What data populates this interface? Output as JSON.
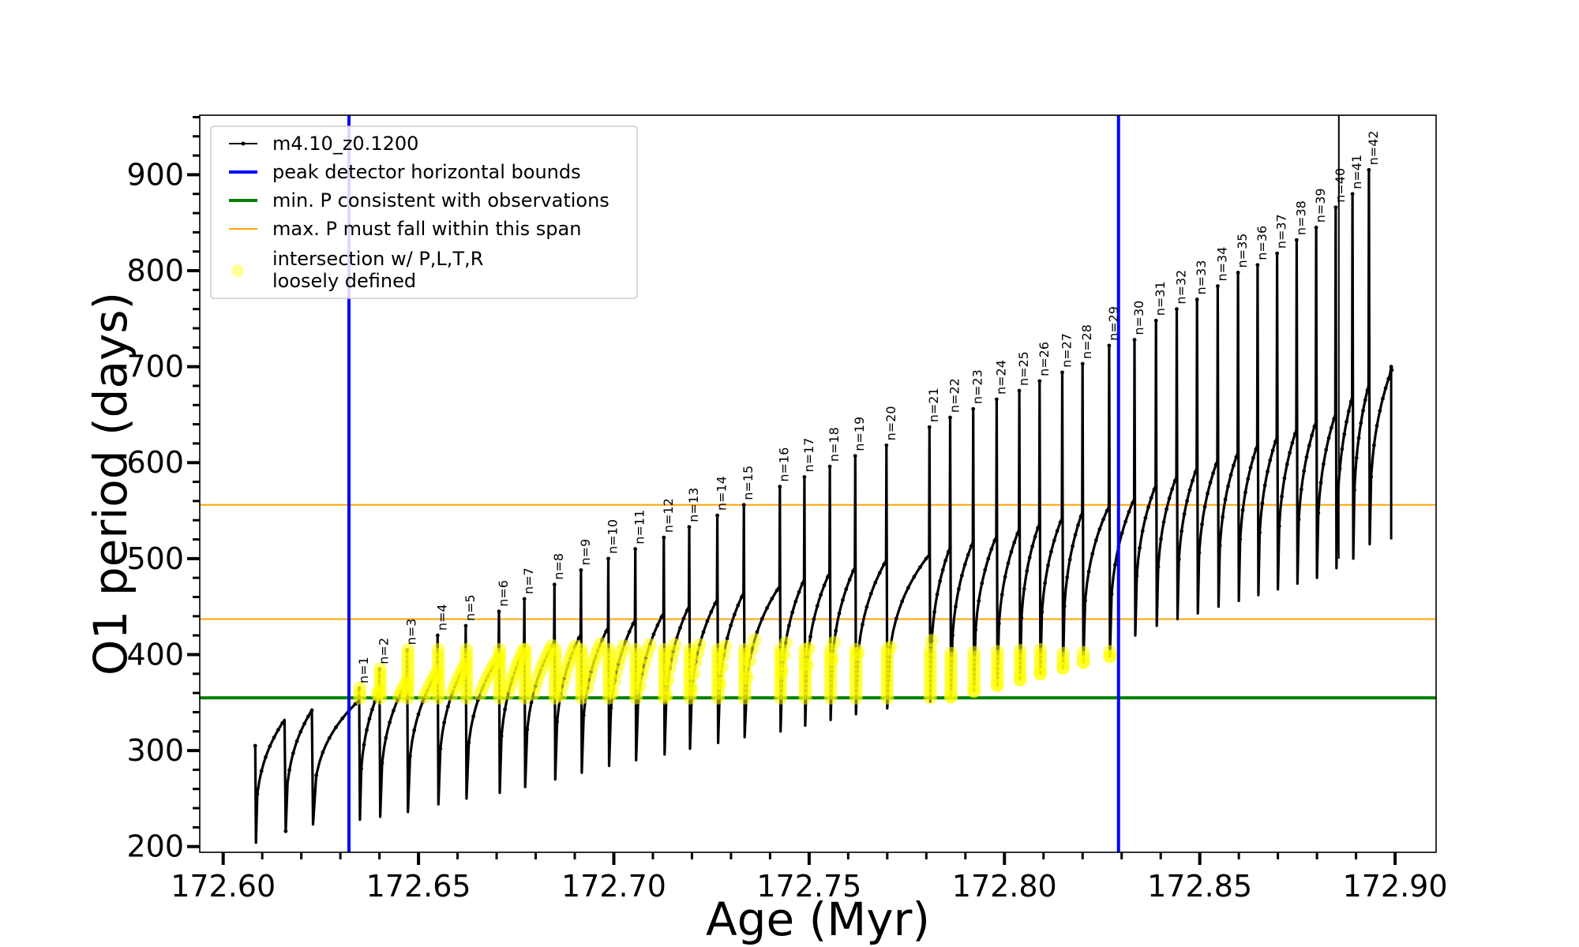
{
  "chart_data": {
    "type": "line",
    "title": "",
    "xlabel": "Age (Myr)",
    "ylabel": "O1 period (days)",
    "xlim": [
      172.594,
      172.9105
    ],
    "ylim": [
      194,
      962
    ],
    "xticks": [
      172.6,
      172.65,
      172.7,
      172.75,
      172.8,
      172.85,
      172.9
    ],
    "xtick_labels": [
      "172.60",
      "172.65",
      "172.70",
      "172.75",
      "172.80",
      "172.85",
      "172.90"
    ],
    "yticks": [
      200,
      300,
      400,
      500,
      600,
      700,
      800,
      900
    ],
    "ytick_labels": [
      "200",
      "300",
      "400",
      "500",
      "600",
      "700",
      "800",
      "900"
    ],
    "grid": false,
    "legend_position": "upper-left",
    "colors": {
      "model": "#000000",
      "bounds": "#0000ff",
      "min_p": "#008000",
      "max_p_span": "#ffa500",
      "intersection": "#ffff00"
    },
    "legend": [
      {
        "key": "model",
        "label": "m4.10_z0.1200",
        "style": "line-marker"
      },
      {
        "key": "bounds",
        "label": "peak detector horizontal bounds",
        "style": "thick-line"
      },
      {
        "key": "min_p",
        "label": "min. P consistent with observations",
        "style": "thick-line"
      },
      {
        "key": "max_p_span",
        "label": "max. P must fall within this span",
        "style": "thin-line"
      },
      {
        "key": "intersection",
        "label": [
          "intersection w/ P,L,T,R",
          "loosely defined"
        ],
        "style": "dot"
      }
    ],
    "vertical_bounds": [
      172.6322,
      172.8292
    ],
    "min_p_consistent": 355,
    "max_p_span": [
      437,
      556
    ],
    "pulses_pre": [
      {
        "x": 172.6082,
        "floor": 204,
        "top": 332
      },
      {
        "x": 172.616,
        "floor": 216,
        "top": 342
      },
      {
        "x": 172.623,
        "floor": 223,
        "top": 352
      }
    ],
    "pulses": [
      {
        "n": 1,
        "x": 172.635,
        "floor": 228,
        "top": 362,
        "spike": 365
      },
      {
        "n": 2,
        "x": 172.6402,
        "floor": 231,
        "top": 372,
        "spike": 385
      },
      {
        "n": 3,
        "x": 172.6473,
        "floor": 236,
        "top": 382,
        "spike": 405
      },
      {
        "n": 4,
        "x": 172.6551,
        "floor": 244,
        "top": 390,
        "spike": 420
      },
      {
        "n": 5,
        "x": 172.6623,
        "floor": 250,
        "top": 397,
        "spike": 430
      },
      {
        "n": 6,
        "x": 172.6708,
        "floor": 256,
        "top": 405,
        "spike": 445
      },
      {
        "n": 7,
        "x": 172.6773,
        "floor": 262,
        "top": 413,
        "spike": 458
      },
      {
        "n": 8,
        "x": 172.685,
        "floor": 270,
        "top": 421,
        "spike": 473
      },
      {
        "n": 9,
        "x": 172.6918,
        "floor": 277,
        "top": 428,
        "spike": 488
      },
      {
        "n": 10,
        "x": 172.6988,
        "floor": 284,
        "top": 436,
        "spike": 500
      },
      {
        "n": 11,
        "x": 172.7057,
        "floor": 290,
        "top": 443,
        "spike": 510
      },
      {
        "n": 12,
        "x": 172.713,
        "floor": 296,
        "top": 450,
        "spike": 522
      },
      {
        "n": 13,
        "x": 172.7195,
        "floor": 302,
        "top": 457,
        "spike": 533
      },
      {
        "n": 14,
        "x": 172.7267,
        "floor": 308,
        "top": 464,
        "spike": 545
      },
      {
        "n": 15,
        "x": 172.7335,
        "floor": 314,
        "top": 471,
        "spike": 556
      },
      {
        "n": 16,
        "x": 172.7427,
        "floor": 320,
        "top": 478,
        "spike": 575
      },
      {
        "n": 17,
        "x": 172.749,
        "floor": 326,
        "top": 485,
        "spike": 585
      },
      {
        "n": 18,
        "x": 172.7555,
        "floor": 332,
        "top": 491,
        "spike": 596
      },
      {
        "n": 19,
        "x": 172.762,
        "floor": 338,
        "top": 498,
        "spike": 607
      },
      {
        "n": 20,
        "x": 172.77,
        "floor": 344,
        "top": 504,
        "spike": 618
      },
      {
        "n": 21,
        "x": 172.781,
        "floor": 351,
        "top": 511,
        "spike": 637
      },
      {
        "n": 22,
        "x": 172.7863,
        "floor": 356,
        "top": 517,
        "spike": 647
      },
      {
        "n": 23,
        "x": 172.7922,
        "floor": 362,
        "top": 523,
        "spike": 656
      },
      {
        "n": 24,
        "x": 172.7982,
        "floor": 368,
        "top": 530,
        "spike": 666
      },
      {
        "n": 25,
        "x": 172.804,
        "floor": 374,
        "top": 536,
        "spike": 675
      },
      {
        "n": 26,
        "x": 172.8092,
        "floor": 380,
        "top": 542,
        "spike": 685
      },
      {
        "n": 27,
        "x": 172.815,
        "floor": 386,
        "top": 548,
        "spike": 694
      },
      {
        "n": 28,
        "x": 172.8202,
        "floor": 392,
        "top": 554,
        "spike": 703
      },
      {
        "n": 29,
        "x": 172.827,
        "floor": 398,
        "top": 562,
        "spike": 722
      },
      {
        "n": 30,
        "x": 172.8335,
        "floor": 420,
        "top": 576,
        "spike": 728
      },
      {
        "n": 31,
        "x": 172.839,
        "floor": 430,
        "top": 585,
        "spike": 748
      },
      {
        "n": 32,
        "x": 172.8443,
        "floor": 437,
        "top": 594,
        "spike": 760
      },
      {
        "n": 33,
        "x": 172.8495,
        "floor": 443,
        "top": 602,
        "spike": 770
      },
      {
        "n": 34,
        "x": 172.8548,
        "floor": 450,
        "top": 610,
        "spike": 784
      },
      {
        "n": 35,
        "x": 172.86,
        "floor": 456,
        "top": 618,
        "spike": 798
      },
      {
        "n": 36,
        "x": 172.865,
        "floor": 462,
        "top": 626,
        "spike": 806
      },
      {
        "n": 37,
        "x": 172.87,
        "floor": 468,
        "top": 634,
        "spike": 818
      },
      {
        "n": 38,
        "x": 172.875,
        "floor": 474,
        "top": 642,
        "spike": 832
      },
      {
        "n": 39,
        "x": 172.88,
        "floor": 480,
        "top": 650,
        "spike": 845
      },
      {
        "n": 40,
        "x": 172.885,
        "floor": 490,
        "top": 668,
        "spike": 866
      },
      {
        "n": 41,
        "x": 172.8893,
        "floor": 500,
        "top": 680,
        "spike": 880
      },
      {
        "n": 42,
        "x": 172.8935,
        "floor": 515,
        "top": 692,
        "spike": 905
      }
    ],
    "tall_spike": {
      "x": 172.8856,
      "y": 962
    },
    "final_branch": {
      "x": 172.899,
      "from": 520,
      "to": 700
    },
    "pulse_label_prefix": "n="
  }
}
